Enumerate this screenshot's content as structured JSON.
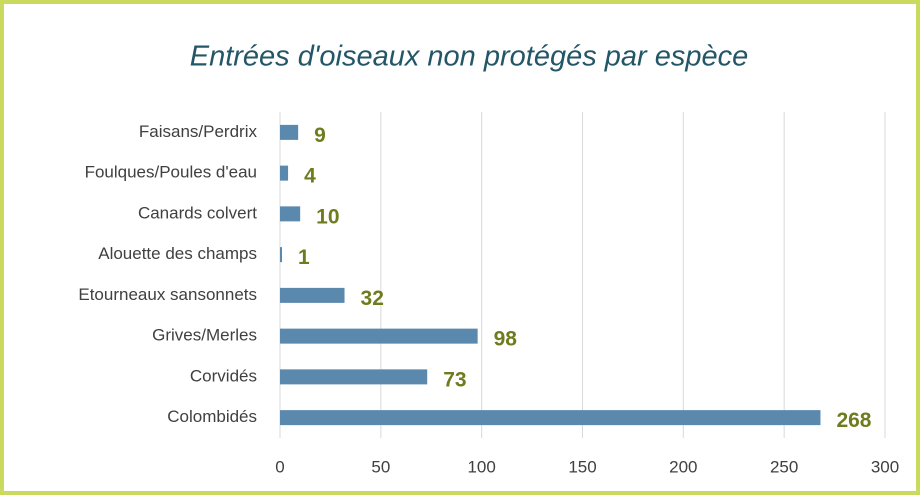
{
  "chart_data": {
    "type": "bar",
    "orientation": "horizontal",
    "title": "Entrées d'oiseaux non protégés par espèce",
    "categories": [
      "Faisans/Perdrix",
      "Foulques/Poules d'eau",
      "Canards colvert",
      "Alouette des champs",
      "Etourneaux sansonnets",
      "Grives/Merles",
      "Corvidés",
      "Colombidés"
    ],
    "values": [
      9,
      4,
      10,
      1,
      32,
      98,
      73,
      268
    ],
    "color": "#5b88ad",
    "xlim": [
      0,
      300
    ],
    "xticks": [
      0,
      50,
      100,
      150,
      200,
      250,
      300
    ],
    "grid": true
  }
}
